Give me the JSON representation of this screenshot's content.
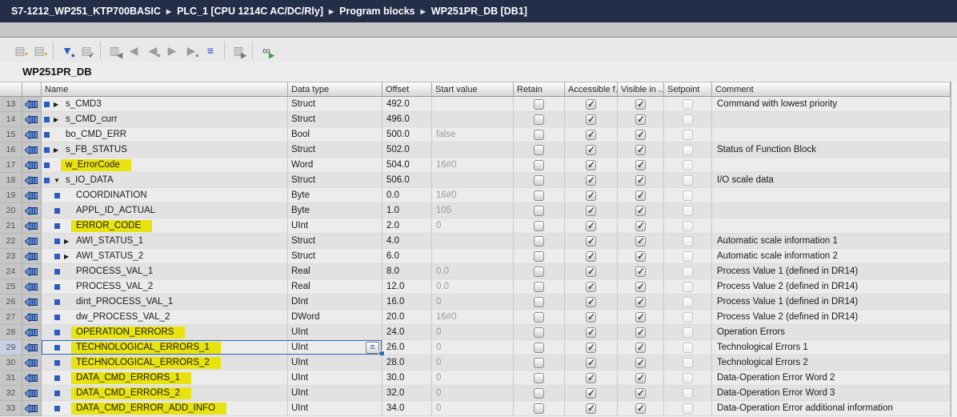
{
  "breadcrumb": {
    "items": [
      "S7-1212_WP251_KTP700BASIC",
      "PLC_1 [CPU 1214C AC/DC/Rly]",
      "Program blocks",
      "WP251PR_DB [DB1]"
    ]
  },
  "toolbar": {
    "groups": [
      [
        {
          "name": "insert-row-icon",
          "glyph": "▤",
          "glyph_color": "#9a9a9a",
          "overlay": "*",
          "overlay_color": "#d89a00"
        },
        {
          "name": "add-row-icon",
          "glyph": "▤",
          "glyph_color": "#9a9a9a",
          "overlay": "*",
          "overlay_color": "#d89a00"
        }
      ],
      [
        {
          "name": "keep-actual-values-icon",
          "glyph": "▼",
          "glyph_color": "#2e5bbf",
          "overlay": "●",
          "overlay_color": "#2e5bbf"
        },
        {
          "name": "snapshot-values-icon",
          "glyph": "▤",
          "glyph_color": "#9a9a9a",
          "overlay": "✓",
          "overlay_color": "#4a4a4a"
        }
      ],
      [
        {
          "name": "copy-snapshots-icon",
          "glyph": "▥",
          "glyph_color": "#9a9a9a",
          "overlay": "◀",
          "overlay_color": "#777777"
        },
        {
          "name": "copy-snapshot-to-start-values-icon",
          "glyph": "◀",
          "glyph_color": "#9a9a9a"
        },
        {
          "name": "copy-snapshot-to-setpoints-icon",
          "glyph": "◀",
          "glyph_color": "#9a9a9a",
          "overlay": "●",
          "overlay_color": "#9a9a9a"
        },
        {
          "name": "load-start-values-icon",
          "glyph": "▶",
          "glyph_color": "#9a9a9a"
        },
        {
          "name": "load-setpoints-icon",
          "glyph": "▶",
          "glyph_color": "#9a9a9a",
          "overlay": "●",
          "overlay_color": "#9a9a9a"
        },
        {
          "name": "expanded-mode-icon",
          "glyph": "≡",
          "glyph_color": "#2244cc"
        }
      ],
      [
        {
          "name": "update-interface-icon",
          "glyph": "▥",
          "glyph_color": "#9a9a9a",
          "overlay": "▶",
          "overlay_color": "#777777"
        }
      ],
      [
        {
          "name": "monitor-all-icon",
          "glyph": "∞",
          "glyph_color": "#555555",
          "overlay": "▶",
          "overlay_color": "#3aa43a"
        }
      ]
    ]
  },
  "title": "WP251PR_DB",
  "table": {
    "columns": [
      "Name",
      "Data type",
      "Offset",
      "Start value",
      "Retain",
      "Accessible f...",
      "Visible in ...",
      "Setpoint",
      "Comment"
    ],
    "rows": [
      {
        "num": "13",
        "level": 1,
        "expand": "collapsed",
        "name": "s_CMD3",
        "highlighted": false,
        "selected": false,
        "data_type": "Struct",
        "offset": "492.0",
        "start_value": "",
        "retain": false,
        "accessible": true,
        "visible": true,
        "setpoint": false,
        "comment": "Command with lowest priority"
      },
      {
        "num": "14",
        "level": 1,
        "expand": "collapsed",
        "name": "s_CMD_curr",
        "highlighted": false,
        "selected": false,
        "data_type": "Struct",
        "offset": "496.0",
        "start_value": "",
        "retain": false,
        "accessible": true,
        "visible": true,
        "setpoint": false,
        "comment": ""
      },
      {
        "num": "15",
        "level": 1,
        "expand": null,
        "name": "bo_CMD_ERR",
        "highlighted": false,
        "selected": false,
        "data_type": "Bool",
        "offset": "500.0",
        "start_value": "false",
        "retain": false,
        "accessible": true,
        "visible": true,
        "setpoint": false,
        "comment": ""
      },
      {
        "num": "16",
        "level": 1,
        "expand": "collapsed",
        "name": "s_FB_STATUS",
        "highlighted": false,
        "selected": false,
        "data_type": "Struct",
        "offset": "502.0",
        "start_value": "",
        "retain": false,
        "accessible": true,
        "visible": true,
        "setpoint": false,
        "comment": "Status of Function Block"
      },
      {
        "num": "17",
        "level": 1,
        "expand": null,
        "name": "w_ErrorCode",
        "highlighted": true,
        "selected": false,
        "data_type": "Word",
        "offset": "504.0",
        "start_value": "16#0",
        "retain": false,
        "accessible": true,
        "visible": true,
        "setpoint": false,
        "comment": ""
      },
      {
        "num": "18",
        "level": 1,
        "expand": "expanded",
        "name": "s_IO_DATA",
        "highlighted": false,
        "selected": false,
        "data_type": "Struct",
        "offset": "506.0",
        "start_value": "",
        "retain": false,
        "accessible": true,
        "visible": true,
        "setpoint": false,
        "comment": "I/O scale data"
      },
      {
        "num": "19",
        "level": 2,
        "expand": null,
        "name": "COORDINATION",
        "highlighted": false,
        "selected": false,
        "data_type": "Byte",
        "offset": "0.0",
        "start_value": "16#0",
        "retain": false,
        "accessible": true,
        "visible": true,
        "setpoint": false,
        "comment": ""
      },
      {
        "num": "20",
        "level": 2,
        "expand": null,
        "name": "APPL_ID_ACTUAL",
        "highlighted": false,
        "selected": false,
        "data_type": "Byte",
        "offset": "1.0",
        "start_value": "105",
        "retain": false,
        "accessible": true,
        "visible": true,
        "setpoint": false,
        "comment": ""
      },
      {
        "num": "21",
        "level": 2,
        "expand": null,
        "name": "ERROR_CODE",
        "highlighted": true,
        "selected": false,
        "data_type": "UInt",
        "offset": "2.0",
        "start_value": "0",
        "retain": false,
        "accessible": true,
        "visible": true,
        "setpoint": false,
        "comment": ""
      },
      {
        "num": "22",
        "level": 2,
        "expand": "collapsed",
        "name": "AWI_STATUS_1",
        "highlighted": false,
        "selected": false,
        "data_type": "Struct",
        "offset": "4.0",
        "start_value": "",
        "retain": false,
        "accessible": true,
        "visible": true,
        "setpoint": false,
        "comment": "Automatic scale information 1"
      },
      {
        "num": "23",
        "level": 2,
        "expand": "collapsed",
        "name": "AWI_STATUS_2",
        "highlighted": false,
        "selected": false,
        "data_type": "Struct",
        "offset": "6.0",
        "start_value": "",
        "retain": false,
        "accessible": true,
        "visible": true,
        "setpoint": false,
        "comment": "Automatic scale information 2"
      },
      {
        "num": "24",
        "level": 2,
        "expand": null,
        "name": "PROCESS_VAL_1",
        "highlighted": false,
        "selected": false,
        "data_type": "Real",
        "offset": "8.0",
        "start_value": "0.0",
        "retain": false,
        "accessible": true,
        "visible": true,
        "setpoint": false,
        "comment": "Process Value 1 (defined in DR14)"
      },
      {
        "num": "25",
        "level": 2,
        "expand": null,
        "name": "PROCESS_VAL_2",
        "highlighted": false,
        "selected": false,
        "data_type": "Real",
        "offset": "12.0",
        "start_value": "0.0",
        "retain": false,
        "accessible": true,
        "visible": true,
        "setpoint": false,
        "comment": "Process Value 2 (defined in DR14)"
      },
      {
        "num": "26",
        "level": 2,
        "expand": null,
        "name": "dint_PROCESS_VAL_1",
        "highlighted": false,
        "selected": false,
        "data_type": "DInt",
        "offset": "16.0",
        "start_value": "0",
        "retain": false,
        "accessible": true,
        "visible": true,
        "setpoint": false,
        "comment": "Process Value 1 (defined in DR14)"
      },
      {
        "num": "27",
        "level": 2,
        "expand": null,
        "name": "dw_PROCESS_VAL_2",
        "highlighted": false,
        "selected": false,
        "data_type": "DWord",
        "offset": "20.0",
        "start_value": "16#0",
        "retain": false,
        "accessible": true,
        "visible": true,
        "setpoint": false,
        "comment": "Process Value 2 (defined in DR14)"
      },
      {
        "num": "28",
        "level": 2,
        "expand": null,
        "name": "OPERATION_ERRORS",
        "highlighted": true,
        "selected": false,
        "data_type": "UInt",
        "offset": "24.0",
        "start_value": "0",
        "retain": false,
        "accessible": true,
        "visible": true,
        "setpoint": false,
        "comment": "Operation Errors"
      },
      {
        "num": "29",
        "level": 2,
        "expand": null,
        "name": "TECHNOLOGICAL_ERRORS_1",
        "highlighted": true,
        "selected": true,
        "data_type": "UInt",
        "offset": "26.0",
        "start_value": "0",
        "retain": false,
        "accessible": true,
        "visible": true,
        "setpoint": false,
        "comment": "Technological Errors 1"
      },
      {
        "num": "30",
        "level": 2,
        "expand": null,
        "name": "TECHNOLOGICAL_ERRORS_2",
        "highlighted": true,
        "selected": false,
        "data_type": "UInt",
        "offset": "28.0",
        "start_value": "0",
        "retain": false,
        "accessible": true,
        "visible": true,
        "setpoint": false,
        "comment": "Technological Errors 2"
      },
      {
        "num": "31",
        "level": 2,
        "expand": null,
        "name": "DATA_CMD_ERRORS_1",
        "highlighted": true,
        "selected": false,
        "data_type": "UInt",
        "offset": "30.0",
        "start_value": "0",
        "retain": false,
        "accessible": true,
        "visible": true,
        "setpoint": false,
        "comment": "Data-Operation Error Word 2"
      },
      {
        "num": "32",
        "level": 2,
        "expand": null,
        "name": "DATA_CMD_ERRORS_2",
        "highlighted": true,
        "selected": false,
        "data_type": "UInt",
        "offset": "32.0",
        "start_value": "0",
        "retain": false,
        "accessible": true,
        "visible": true,
        "setpoint": false,
        "comment": "Data-Operation Error Word 3"
      },
      {
        "num": "33",
        "level": 2,
        "expand": null,
        "name": "DATA_CMD_ERROR_ADD_INFO",
        "highlighted": true,
        "selected": false,
        "data_type": "UInt",
        "offset": "34.0",
        "start_value": "0",
        "retain": false,
        "accessible": true,
        "visible": true,
        "setpoint": false,
        "comment": "Data-Operation Error additional information"
      }
    ]
  },
  "icons": {
    "expand_collapsed_glyph": "▶",
    "expand_expanded_glyph": "▼",
    "picker_glyph": "≡"
  },
  "colors": {
    "breadcrumb_bg": "#242e49",
    "highlight_yellow": "#e8e20e",
    "selection_blue": "#2e6fb5",
    "element_marker_blue": "#2e5bbf"
  }
}
